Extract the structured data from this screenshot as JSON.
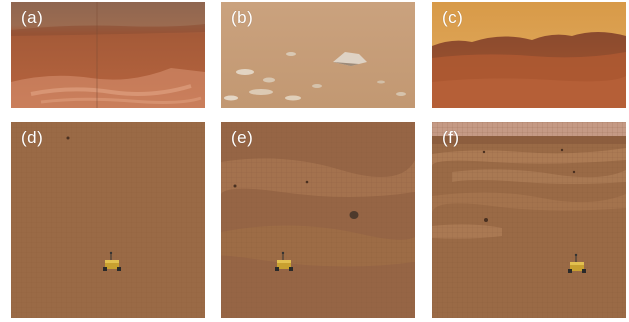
{
  "figure": {
    "panels": [
      {
        "id": "a",
        "label": "(a)",
        "kind": "photo",
        "subject": "martian-plain-photo"
      },
      {
        "id": "b",
        "label": "(b)",
        "kind": "photo",
        "subject": "martian-rocks-photo"
      },
      {
        "id": "c",
        "label": "(c)",
        "kind": "photo",
        "subject": "martian-hills-photo"
      },
      {
        "id": "d",
        "label": "(d)",
        "kind": "simulation",
        "subject": "simulated-flat-terrain-with-rover"
      },
      {
        "id": "e",
        "label": "(e)",
        "kind": "simulation",
        "subject": "simulated-terrain-with-rock-and-rover"
      },
      {
        "id": "f",
        "label": "(f)",
        "kind": "simulation",
        "subject": "simulated-hills-terrain-with-rover"
      }
    ],
    "colors": {
      "photo_a_sky": "#9a6a4e",
      "photo_a_ground": "#b4613d",
      "photo_b_ground": "#c9a07a",
      "photo_c_sky": "#d9a050",
      "photo_c_ground": "#a5532e",
      "sim_terrain": "#9a6a45",
      "sim_terrain_dark": "#8a5a38",
      "sim_sky_f": "#c59a85",
      "rover_body": "#c8a030"
    }
  }
}
